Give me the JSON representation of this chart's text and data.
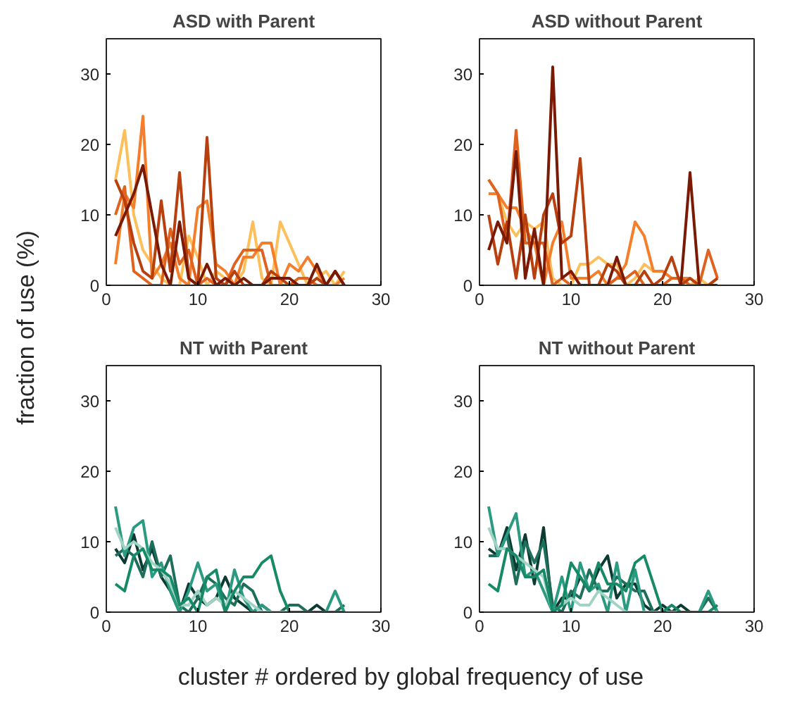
{
  "chart_data": [
    {
      "type": "line",
      "title": "ASD with Parent",
      "ylabel": "fraction of use (%)",
      "x": [
        1,
        2,
        3,
        4,
        5,
        6,
        7,
        8,
        9,
        10,
        11,
        12,
        13,
        14,
        15,
        16,
        17,
        18,
        19,
        20,
        21,
        22,
        23,
        24,
        25,
        26
      ],
      "xlim": [
        0,
        30
      ],
      "ylim": [
        0,
        35
      ],
      "xticks": [
        0,
        10,
        20,
        30
      ],
      "yticks": [
        0,
        10,
        20,
        30
      ],
      "series": [
        {
          "color": "#fdbf5a",
          "values": [
            15,
            22,
            10,
            5,
            3,
            1,
            0,
            0,
            7,
            4,
            0,
            2,
            1,
            0,
            2,
            9,
            1,
            0,
            9,
            6,
            3,
            0,
            1,
            2,
            0,
            2
          ]
        },
        {
          "color": "#f57e2a",
          "values": [
            3,
            13,
            11,
            24,
            1,
            3,
            6,
            1,
            0,
            11,
            12,
            3,
            2,
            0,
            4,
            4,
            6,
            6,
            0,
            3,
            2,
            4,
            2,
            0,
            0,
            1
          ]
        },
        {
          "color": "#e0621f",
          "values": [
            10,
            14,
            2,
            1,
            0,
            0,
            8,
            3,
            5,
            0,
            1,
            0,
            0,
            3,
            5,
            5,
            5,
            0,
            0,
            0,
            1,
            1,
            0,
            0,
            2,
            0
          ]
        },
        {
          "color": "#b8400f",
          "values": [
            15,
            12,
            6,
            2,
            1,
            12,
            2,
            16,
            1,
            0,
            21,
            1,
            0,
            2,
            0,
            0,
            0,
            2,
            1,
            0,
            0,
            0,
            1,
            0,
            2,
            0
          ]
        },
        {
          "color": "#7a1a04",
          "values": [
            7,
            10,
            13,
            17,
            10,
            3,
            0,
            9,
            1,
            0,
            3,
            0,
            1,
            0,
            1,
            0,
            0,
            1,
            1,
            1,
            0,
            0,
            3,
            0,
            2,
            0
          ]
        }
      ]
    },
    {
      "type": "line",
      "title": "ASD without Parent",
      "x": [
        1,
        2,
        3,
        4,
        5,
        6,
        7,
        8,
        9,
        10,
        11,
        12,
        13,
        14,
        15,
        16,
        17,
        18,
        19,
        20,
        21,
        22,
        23,
        24,
        25,
        26
      ],
      "xlim": [
        0,
        30
      ],
      "ylim": [
        0,
        35
      ],
      "xticks": [
        0,
        10,
        20,
        30
      ],
      "yticks": [
        0,
        10,
        20,
        30
      ],
      "series": [
        {
          "color": "#fdbf5a",
          "values": [
            15,
            13,
            9,
            7,
            9,
            8,
            9,
            1,
            0,
            0,
            3,
            3,
            4,
            3,
            3,
            0,
            1,
            3,
            2,
            2,
            1,
            1,
            0,
            1,
            0,
            1
          ]
        },
        {
          "color": "#f57e2a",
          "values": [
            13,
            13,
            11,
            11,
            8,
            6,
            0,
            6,
            9,
            1,
            1,
            1,
            2,
            0,
            1,
            3,
            9,
            7,
            2,
            2,
            1,
            1,
            1,
            0,
            0,
            1
          ]
        },
        {
          "color": "#e0621f",
          "values": [
            15,
            13,
            6,
            22,
            6,
            6,
            6,
            0,
            1,
            0,
            0,
            0,
            0,
            0,
            1,
            1,
            2,
            0,
            0,
            0,
            1,
            1,
            0,
            0,
            5,
            1
          ]
        },
        {
          "color": "#b8400f",
          "values": [
            10,
            3,
            9,
            1,
            10,
            1,
            10,
            13,
            6,
            7,
            18,
            0,
            0,
            3,
            2,
            0,
            0,
            2,
            0,
            1,
            4,
            0,
            1,
            0,
            0,
            1
          ]
        },
        {
          "color": "#7a1a04",
          "values": [
            5,
            9,
            6,
            19,
            1,
            8,
            0,
            31,
            1,
            2,
            0,
            0,
            0,
            0,
            4,
            0,
            0,
            0,
            0,
            0,
            0,
            0,
            16,
            0,
            0,
            0
          ]
        }
      ]
    },
    {
      "type": "line",
      "title": "NT with Parent",
      "xlabel": "cluster # ordered by global frequency of use",
      "x": [
        1,
        2,
        3,
        4,
        5,
        6,
        7,
        8,
        9,
        10,
        11,
        12,
        13,
        14,
        15,
        16,
        17,
        18,
        19,
        20,
        21,
        22,
        23,
        24,
        25,
        26
      ],
      "xlim": [
        0,
        30
      ],
      "ylim": [
        0,
        35
      ],
      "xticks": [
        0,
        10,
        20,
        30
      ],
      "yticks": [
        0,
        10,
        20,
        30
      ],
      "series": [
        {
          "color": "#0b3b33",
          "values": [
            9,
            7,
            11,
            6,
            9,
            5,
            3,
            0,
            4,
            2,
            1,
            2,
            5,
            2,
            1,
            0,
            1,
            0,
            0,
            0,
            0,
            0,
            1,
            0,
            0,
            0
          ]
        },
        {
          "color": "#1d6e5a",
          "values": [
            8,
            9,
            8,
            5,
            10,
            5,
            8,
            1,
            0,
            2,
            5,
            4,
            2,
            1,
            4,
            3,
            0,
            0,
            0,
            1,
            1,
            0,
            0,
            0,
            0,
            1
          ]
        },
        {
          "color": "#2a9a80",
          "values": [
            15,
            8,
            12,
            13,
            5,
            7,
            3,
            0,
            3,
            7,
            3,
            4,
            0,
            6,
            2,
            0,
            1,
            0,
            0,
            0,
            0,
            0,
            0,
            0,
            3,
            0
          ]
        },
        {
          "color": "#9fd3c3",
          "values": [
            12,
            9,
            10,
            9,
            7,
            6,
            4,
            1,
            1,
            3,
            1,
            2,
            1,
            3,
            2,
            1,
            0,
            0,
            0,
            0,
            0,
            0,
            0,
            0,
            0,
            0
          ]
        },
        {
          "color": "#168a66",
          "values": [
            4,
            3,
            8,
            9,
            6,
            6,
            5,
            1,
            2,
            0,
            5,
            6,
            0,
            3,
            5,
            5,
            7,
            8,
            3,
            0,
            0,
            0,
            0,
            0,
            0,
            0
          ]
        }
      ]
    },
    {
      "type": "line",
      "title": "NT without Parent",
      "x": [
        1,
        2,
        3,
        4,
        5,
        6,
        7,
        8,
        9,
        10,
        11,
        12,
        13,
        14,
        15,
        16,
        17,
        18,
        19,
        20,
        21,
        22,
        23,
        24,
        25,
        26
      ],
      "xlim": [
        0,
        30
      ],
      "ylim": [
        0,
        35
      ],
      "xticks": [
        0,
        10,
        20,
        30
      ],
      "yticks": [
        0,
        10,
        20,
        30
      ],
      "series": [
        {
          "color": "#0b3b33",
          "values": [
            9,
            8,
            12,
            6,
            11,
            4,
            12,
            0,
            2,
            2,
            5,
            3,
            6,
            8,
            2,
            4,
            4,
            1,
            0,
            1,
            0,
            1,
            0,
            0,
            0,
            0
          ]
        },
        {
          "color": "#1d6e5a",
          "values": [
            8,
            8,
            11,
            4,
            10,
            7,
            10,
            1,
            0,
            3,
            2,
            6,
            3,
            3,
            5,
            4,
            3,
            3,
            0,
            0,
            0,
            0,
            0,
            0,
            2,
            0
          ]
        },
        {
          "color": "#2a9a80",
          "values": [
            15,
            8,
            11,
            14,
            5,
            6,
            3,
            0,
            5,
            0,
            7,
            3,
            4,
            0,
            7,
            0,
            6,
            0,
            0,
            0,
            0,
            0,
            0,
            0,
            3,
            0
          ]
        },
        {
          "color": "#9fd3c3",
          "values": [
            12,
            9,
            9,
            8,
            7,
            6,
            5,
            0,
            1,
            2,
            1,
            1,
            3,
            2,
            1,
            0,
            0,
            0,
            0,
            0,
            0,
            0,
            0,
            0,
            0,
            0
          ]
        },
        {
          "color": "#168a66",
          "values": [
            4,
            3,
            9,
            8,
            5,
            5,
            6,
            0,
            1,
            7,
            5,
            3,
            7,
            4,
            4,
            3,
            7,
            8,
            4,
            0,
            1,
            0,
            0,
            0,
            0,
            1
          ]
        }
      ]
    }
  ]
}
